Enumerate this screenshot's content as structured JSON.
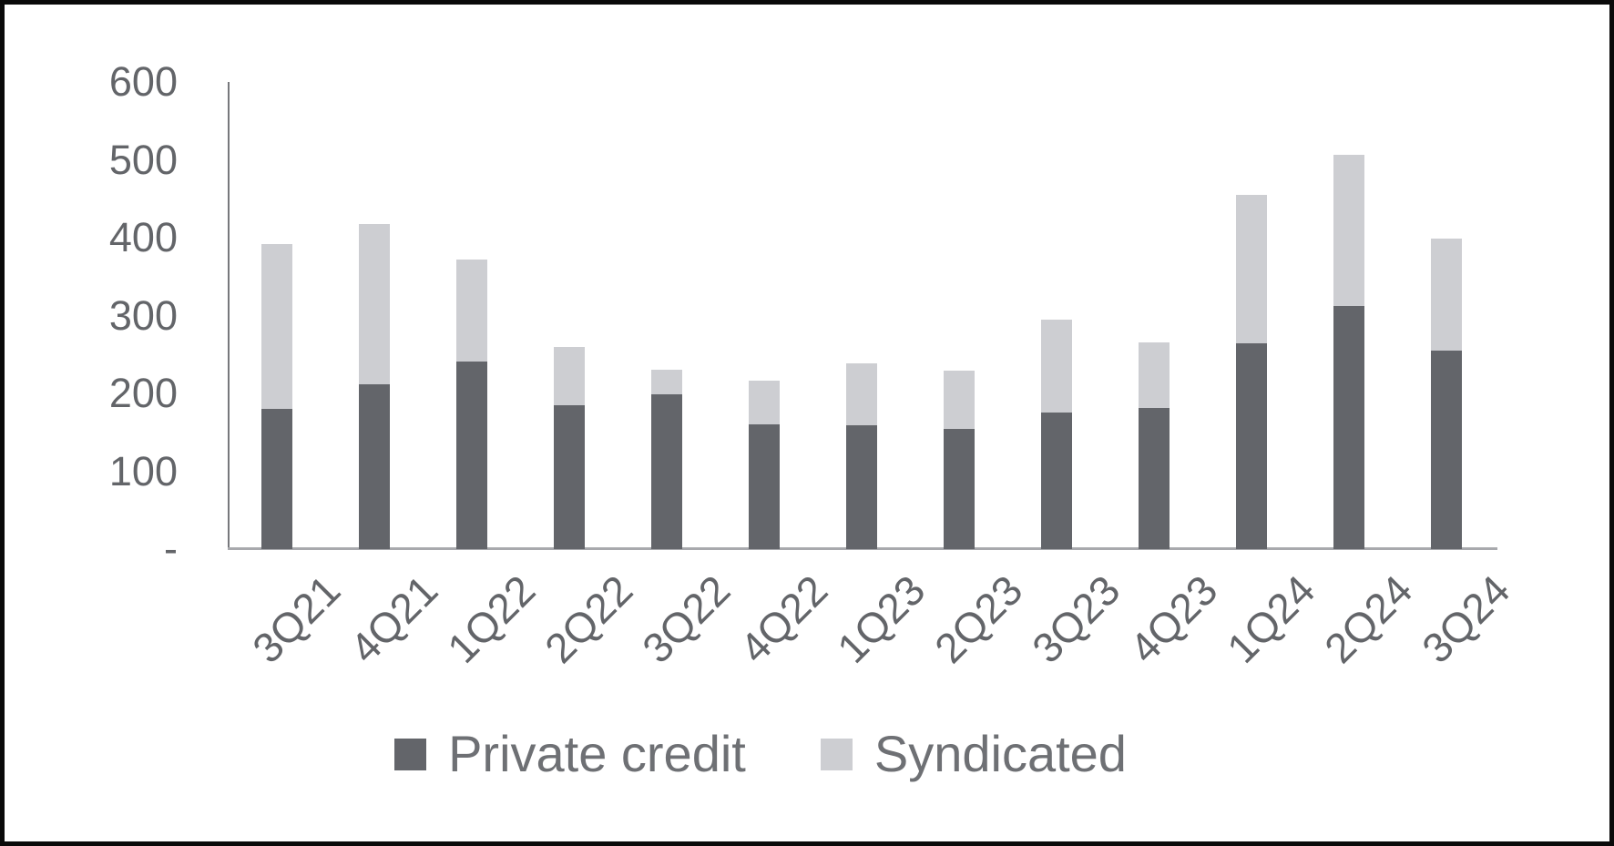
{
  "chart_data": {
    "type": "bar",
    "stacked": true,
    "title": "",
    "xlabel": "",
    "ylabel": "",
    "categories": [
      "3Q21",
      "4Q21",
      "1Q22",
      "2Q22",
      "3Q22",
      "4Q22",
      "1Q23",
      "2Q23",
      "3Q23",
      "4Q23",
      "1Q24",
      "2Q24",
      "3Q24"
    ],
    "series": [
      {
        "name": "Private credit",
        "color": "#63656a",
        "values": [
          180,
          212,
          241,
          185,
          199,
          160,
          159,
          154,
          175,
          181,
          264,
          312,
          255
        ]
      },
      {
        "name": "Syndicated",
        "color": "#cdced2",
        "values": [
          212,
          206,
          131,
          75,
          31,
          56,
          80,
          75,
          120,
          85,
          191,
          194,
          144
        ]
      }
    ],
    "totals": [
      392,
      418,
      372,
      260,
      230,
      216,
      239,
      229,
      295,
      266,
      455,
      506,
      399
    ],
    "ylim": [
      0,
      600
    ],
    "y_ticks": [
      {
        "label": "600",
        "value": 600
      },
      {
        "label": "500",
        "value": 500
      },
      {
        "label": "400",
        "value": 400
      },
      {
        "label": "300",
        "value": 300
      },
      {
        "label": "200",
        "value": 200
      },
      {
        "label": "100",
        "value": 100
      },
      {
        "label": "-",
        "value": 0
      }
    ],
    "grid": false,
    "legend_position": "bottom"
  },
  "colors": {
    "background": "#ffffff",
    "frame_border": "#0a0a0a",
    "y_axis_line": "#77787c",
    "x_axis_line": "#a8a9ad",
    "tick_text": "#636569",
    "legend_text": "#6e7074"
  }
}
